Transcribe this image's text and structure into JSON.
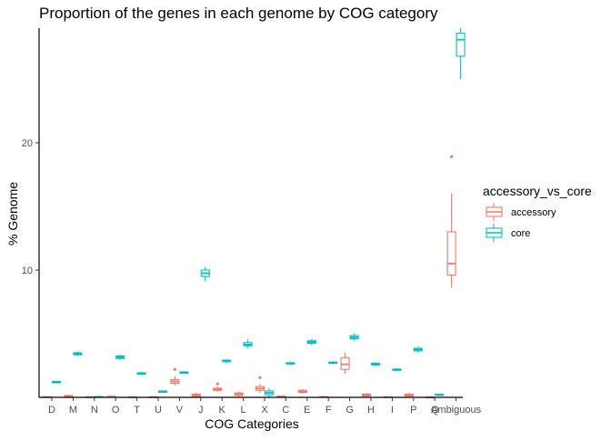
{
  "chart_data": {
    "type": "boxplot",
    "title": "Proportion of the genes in each genome by COG category",
    "xlabel": "COG Categories",
    "ylabel": "% Genome",
    "ylim": [
      0,
      29
    ],
    "y_ticks": [
      10,
      20
    ],
    "grid": false,
    "legend": {
      "title": "accessory_vs_core",
      "placement": "right",
      "entries": [
        "accessory",
        "core"
      ]
    },
    "categories": [
      "D",
      "M",
      "N",
      "O",
      "T",
      "U",
      "V",
      "J",
      "K",
      "L",
      "X",
      "C",
      "E",
      "F",
      "G",
      "H",
      "I",
      "P",
      "Q",
      "Ambiguous"
    ],
    "series": [
      {
        "name": "accessory",
        "color": "#F8766D",
        "boxes": [
          {
            "category": "D",
            "min": 0.0,
            "q1": 0.0,
            "median": 0.02,
            "q3": 0.04,
            "max": 0.06,
            "outliers": []
          },
          {
            "category": "M",
            "min": 0.0,
            "q1": 0.05,
            "median": 0.1,
            "q3": 0.15,
            "max": 0.2,
            "outliers": []
          },
          {
            "category": "N",
            "min": 0.0,
            "q1": 0.0,
            "median": 0.02,
            "q3": 0.04,
            "max": 0.07,
            "outliers": []
          },
          {
            "category": "O",
            "min": 0.0,
            "q1": 0.02,
            "median": 0.05,
            "q3": 0.08,
            "max": 0.12,
            "outliers": []
          },
          {
            "category": "T",
            "min": 0.0,
            "q1": 0.0,
            "median": 0.02,
            "q3": 0.03,
            "max": 0.05,
            "outliers": []
          },
          {
            "category": "U",
            "min": 0.0,
            "q1": 0.0,
            "median": 0.02,
            "q3": 0.03,
            "max": 0.05,
            "outliers": []
          },
          {
            "category": "V",
            "min": 0.95,
            "q1": 1.1,
            "median": 1.25,
            "q3": 1.4,
            "max": 1.65,
            "outliers": [
              2.2
            ]
          },
          {
            "category": "J",
            "min": 0.0,
            "q1": 0.05,
            "median": 0.15,
            "q3": 0.25,
            "max": 0.4,
            "outliers": []
          },
          {
            "category": "K",
            "min": 0.45,
            "q1": 0.55,
            "median": 0.62,
            "q3": 0.72,
            "max": 0.85,
            "outliers": [
              1.05
            ]
          },
          {
            "category": "L",
            "min": 0.05,
            "q1": 0.15,
            "median": 0.25,
            "q3": 0.35,
            "max": 0.45,
            "outliers": []
          },
          {
            "category": "X",
            "min": 0.35,
            "q1": 0.55,
            "median": 0.7,
            "q3": 0.85,
            "max": 1.05,
            "outliers": [
              1.55
            ]
          },
          {
            "category": "C",
            "min": 0.0,
            "q1": 0.03,
            "median": 0.06,
            "q3": 0.1,
            "max": 0.15,
            "outliers": []
          },
          {
            "category": "E",
            "min": 0.3,
            "q1": 0.38,
            "median": 0.45,
            "q3": 0.55,
            "max": 0.65,
            "outliers": []
          },
          {
            "category": "F",
            "min": 0.0,
            "q1": 0.0,
            "median": 0.03,
            "q3": 0.05,
            "max": 0.08,
            "outliers": []
          },
          {
            "category": "G",
            "min": 1.85,
            "q1": 2.2,
            "median": 2.6,
            "q3": 3.1,
            "max": 3.55,
            "outliers": []
          },
          {
            "category": "H",
            "min": 0.0,
            "q1": 0.1,
            "median": 0.18,
            "q3": 0.25,
            "max": 0.35,
            "outliers": []
          },
          {
            "category": "I",
            "min": 0.0,
            "q1": 0.0,
            "median": 0.02,
            "q3": 0.04,
            "max": 0.06,
            "outliers": []
          },
          {
            "category": "P",
            "min": 0.0,
            "q1": 0.1,
            "median": 0.18,
            "q3": 0.25,
            "max": 0.35,
            "outliers": []
          },
          {
            "category": "Q",
            "min": 0.0,
            "q1": 0.0,
            "median": 0.0,
            "q3": 0.0,
            "max": 0.0,
            "outliers": []
          },
          {
            "category": "Ambiguous",
            "min": 8.6,
            "q1": 9.6,
            "median": 10.5,
            "q3": 13.0,
            "max": 16.0,
            "outliers": [
              18.9
            ]
          }
        ]
      },
      {
        "name": "core",
        "color": "#00BFC4",
        "boxes": [
          {
            "category": "D",
            "min": 1.1,
            "q1": 1.15,
            "median": 1.2,
            "q3": 1.25,
            "max": 1.3,
            "outliers": []
          },
          {
            "category": "M",
            "min": 3.25,
            "q1": 3.35,
            "median": 3.42,
            "q3": 3.5,
            "max": 3.6,
            "outliers": []
          },
          {
            "category": "N",
            "min": 0.0,
            "q1": 0.02,
            "median": 0.04,
            "q3": 0.06,
            "max": 0.08,
            "outliers": []
          },
          {
            "category": "O",
            "min": 2.95,
            "q1": 3.05,
            "median": 3.15,
            "q3": 3.25,
            "max": 3.35,
            "outliers": []
          },
          {
            "category": "T",
            "min": 1.75,
            "q1": 1.82,
            "median": 1.88,
            "q3": 1.93,
            "max": 2.0,
            "outliers": []
          },
          {
            "category": "U",
            "min": 0.35,
            "q1": 0.4,
            "median": 0.45,
            "q3": 0.5,
            "max": 0.55,
            "outliers": []
          },
          {
            "category": "V",
            "min": 1.85,
            "q1": 1.9,
            "median": 1.95,
            "q3": 2.0,
            "max": 2.05,
            "outliers": []
          },
          {
            "category": "J",
            "min": 9.1,
            "q1": 9.5,
            "median": 9.75,
            "q3": 10.0,
            "max": 10.25,
            "outliers": []
          },
          {
            "category": "K",
            "min": 2.7,
            "q1": 2.8,
            "median": 2.86,
            "q3": 2.92,
            "max": 3.0,
            "outliers": []
          },
          {
            "category": "L",
            "min": 3.85,
            "q1": 4.05,
            "median": 4.15,
            "q3": 4.3,
            "max": 4.55,
            "outliers": []
          },
          {
            "category": "X",
            "min": 0.05,
            "q1": 0.2,
            "median": 0.35,
            "q3": 0.5,
            "max": 0.7,
            "outliers": []
          },
          {
            "category": "C",
            "min": 2.55,
            "q1": 2.62,
            "median": 2.67,
            "q3": 2.72,
            "max": 2.8,
            "outliers": []
          },
          {
            "category": "E",
            "min": 4.1,
            "q1": 4.25,
            "median": 4.35,
            "q3": 4.45,
            "max": 4.6,
            "outliers": []
          },
          {
            "category": "F",
            "min": 2.6,
            "q1": 2.67,
            "median": 2.72,
            "q3": 2.77,
            "max": 2.85,
            "outliers": []
          },
          {
            "category": "G",
            "min": 4.45,
            "q1": 4.6,
            "median": 4.72,
            "q3": 4.85,
            "max": 5.0,
            "outliers": []
          },
          {
            "category": "H",
            "min": 2.45,
            "q1": 2.55,
            "median": 2.6,
            "q3": 2.67,
            "max": 2.78,
            "outliers": []
          },
          {
            "category": "I",
            "min": 2.05,
            "q1": 2.12,
            "median": 2.17,
            "q3": 2.22,
            "max": 2.3,
            "outliers": []
          },
          {
            "category": "P",
            "min": 3.5,
            "q1": 3.65,
            "median": 3.75,
            "q3": 3.85,
            "max": 4.0,
            "outliers": []
          },
          {
            "category": "Q",
            "min": 0.12,
            "q1": 0.16,
            "median": 0.2,
            "q3": 0.24,
            "max": 0.28,
            "outliers": []
          },
          {
            "category": "Ambiguous",
            "min": 25.0,
            "q1": 26.8,
            "median": 28.1,
            "q3": 28.6,
            "max": 29.0,
            "outliers": []
          }
        ]
      }
    ]
  }
}
